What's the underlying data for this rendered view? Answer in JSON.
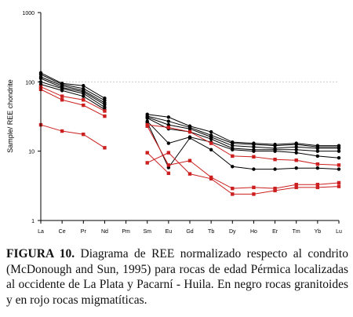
{
  "caption": {
    "label": "FIGURA 10.",
    "text": "Diagrama de REE normalizado respecto al condrito (McDonough and Sun, 1995) para rocas de edad Pérmica localizadas al occidente de La Plata y Pacarní - Huila. En negro rocas granitoides y en rojo rocas migmatíticas."
  },
  "chart_data": {
    "type": "line",
    "y_scale": "log",
    "ylabel": "Sample/ REE chondrite",
    "ylim": [
      1,
      1000
    ],
    "y_ticks": [
      "1",
      "10",
      "100",
      "1000"
    ],
    "categories": [
      "La",
      "Ce",
      "Pr",
      "Nd",
      "Pm",
      "Sm",
      "Eu",
      "Gd",
      "Tb",
      "Dy",
      "Ho",
      "Er",
      "Tm",
      "Yb",
      "Lu"
    ],
    "reference_line": 100,
    "colors": {
      "granitoid": "#000000",
      "migmatite": "#cc1f1f"
    },
    "series": [
      {
        "group": "granitoid",
        "values": [
          135,
          95,
          88,
          58,
          null,
          34,
          31,
          23,
          19,
          13.5,
          13,
          12.5,
          13,
          12,
          12
        ]
      },
      {
        "group": "granitoid",
        "values": [
          128,
          92,
          80,
          54,
          null,
          32,
          27,
          22,
          17,
          13,
          12.5,
          12,
          12.5,
          11.5,
          11.5
        ]
      },
      {
        "group": "granitoid",
        "values": [
          118,
          88,
          75,
          50,
          null,
          31,
          24,
          21,
          16,
          12,
          11.5,
          11,
          11.5,
          11,
          11
        ]
      },
      {
        "group": "granitoid",
        "values": [
          112,
          83,
          72,
          47,
          null,
          30,
          21,
          19,
          15,
          11,
          10.5,
          10.5,
          10.5,
          10,
          10
        ]
      },
      {
        "group": "granitoid",
        "values": [
          100,
          80,
          68,
          43,
          null,
          27,
          13,
          16,
          13.5,
          10.5,
          10,
          10,
          9.5,
          8.5,
          8
        ]
      },
      {
        "group": "granitoid",
        "values": [
          92,
          75,
          62,
          40,
          null,
          26,
          5.8,
          15.5,
          10.5,
          6,
          5.5,
          5.5,
          5.7,
          5.7,
          5.5
        ]
      },
      {
        "group": "migmatite",
        "values": [
          85,
          62,
          55,
          38,
          null,
          24,
          22,
          19,
          13,
          8.5,
          8.3,
          7.6,
          7.4,
          6.5,
          6.3
        ]
      },
      {
        "group": "migmatite",
        "values": [
          78,
          55,
          46,
          32,
          null,
          23,
          6.3,
          7.3,
          4.2,
          2.9,
          3,
          2.9,
          3.3,
          3.3,
          3.5
        ]
      },
      {
        "group": "migmatite",
        "values": [
          24,
          19.5,
          17.5,
          11.2,
          null,
          6.8,
          9.5,
          4.7,
          4,
          2.4,
          2.4,
          2.7,
          3,
          3,
          3.1
        ]
      },
      {
        "group": "migmatite",
        "values": [
          null,
          null,
          null,
          null,
          null,
          9.5,
          4.8,
          null,
          null,
          null,
          null,
          null,
          null,
          null,
          null
        ]
      }
    ]
  }
}
